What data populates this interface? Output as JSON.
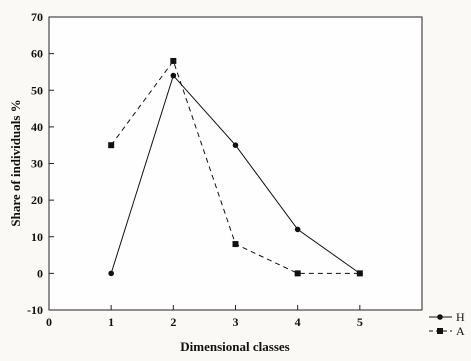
{
  "chart_data": {
    "type": "line",
    "title": "",
    "xlabel": "Dimensional classes",
    "ylabel": "Share of individuals %",
    "xlim": [
      0,
      6
    ],
    "ylim": [
      -10,
      70
    ],
    "xticks": [
      0,
      1,
      2,
      3,
      4,
      5
    ],
    "yticks": [
      -10,
      0,
      10,
      20,
      30,
      40,
      50,
      60,
      70
    ],
    "grid": false,
    "legend_position": "bottom-right",
    "series": [
      {
        "name": "H",
        "x": [
          1,
          2,
          3,
          4,
          5
        ],
        "y": [
          0,
          54,
          35,
          12,
          0
        ],
        "marker": "circle",
        "line": "solid",
        "color": "#111111"
      },
      {
        "name": "A",
        "x": [
          1,
          2,
          3,
          4,
          5
        ],
        "y": [
          35,
          58,
          8,
          0,
          0
        ],
        "marker": "square",
        "line": "dashed",
        "color": "#111111"
      }
    ]
  }
}
